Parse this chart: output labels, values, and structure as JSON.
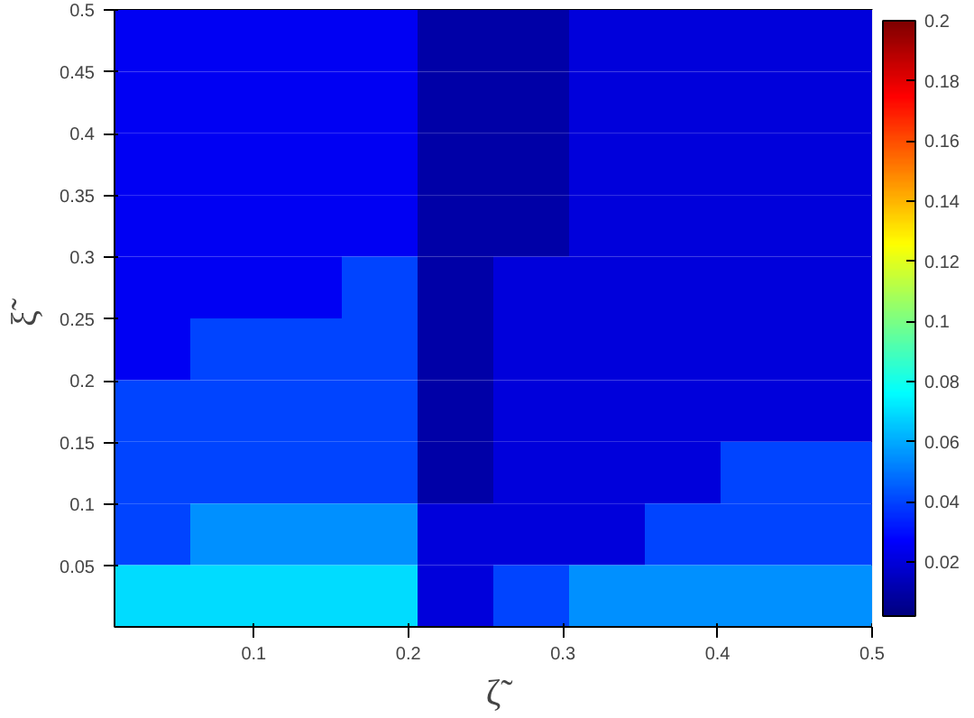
{
  "chart_data": {
    "type": "heatmap",
    "xlabel": "ζ̃",
    "ylabel": "ξ̃",
    "xlim": [
      0.01,
      0.5
    ],
    "ylim": [
      0.001,
      0.5
    ],
    "xticks": [
      0.1,
      0.2,
      0.3,
      0.4,
      0.5
    ],
    "yticks": [
      0.05,
      0.1,
      0.15,
      0.2,
      0.25,
      0.3,
      0.35,
      0.4,
      0.45,
      0.5
    ],
    "clim": [
      0.002,
      0.2
    ],
    "cticks": [
      0.02,
      0.04,
      0.06,
      0.08,
      0.1,
      0.12,
      0.14,
      0.16,
      0.18,
      0.2
    ],
    "grid": false,
    "cells": [
      [
        0.025,
        0.025,
        0.025,
        0.025,
        0.01,
        0.01,
        0.02,
        0.02,
        0.02,
        0.02
      ],
      [
        0.025,
        0.025,
        0.025,
        0.025,
        0.01,
        0.01,
        0.02,
        0.02,
        0.02,
        0.02
      ],
      [
        0.025,
        0.025,
        0.025,
        0.025,
        0.01,
        0.01,
        0.02,
        0.02,
        0.02,
        0.02
      ],
      [
        0.025,
        0.025,
        0.025,
        0.025,
        0.01,
        0.01,
        0.02,
        0.02,
        0.02,
        0.02
      ],
      [
        0.025,
        0.025,
        0.025,
        0.04,
        0.01,
        0.02,
        0.02,
        0.02,
        0.02,
        0.02
      ],
      [
        0.025,
        0.04,
        0.04,
        0.04,
        0.01,
        0.02,
        0.02,
        0.02,
        0.02,
        0.02
      ],
      [
        0.04,
        0.04,
        0.04,
        0.04,
        0.01,
        0.02,
        0.02,
        0.02,
        0.02,
        0.02
      ],
      [
        0.04,
        0.04,
        0.04,
        0.04,
        0.01,
        0.02,
        0.02,
        0.02,
        0.04,
        0.04
      ],
      [
        0.04,
        0.055,
        0.055,
        0.055,
        0.02,
        0.02,
        0.02,
        0.04,
        0.04,
        0.04
      ],
      [
        0.07,
        0.07,
        0.07,
        0.07,
        0.02,
        0.04,
        0.055,
        0.055,
        0.055,
        0.055
      ]
    ]
  }
}
